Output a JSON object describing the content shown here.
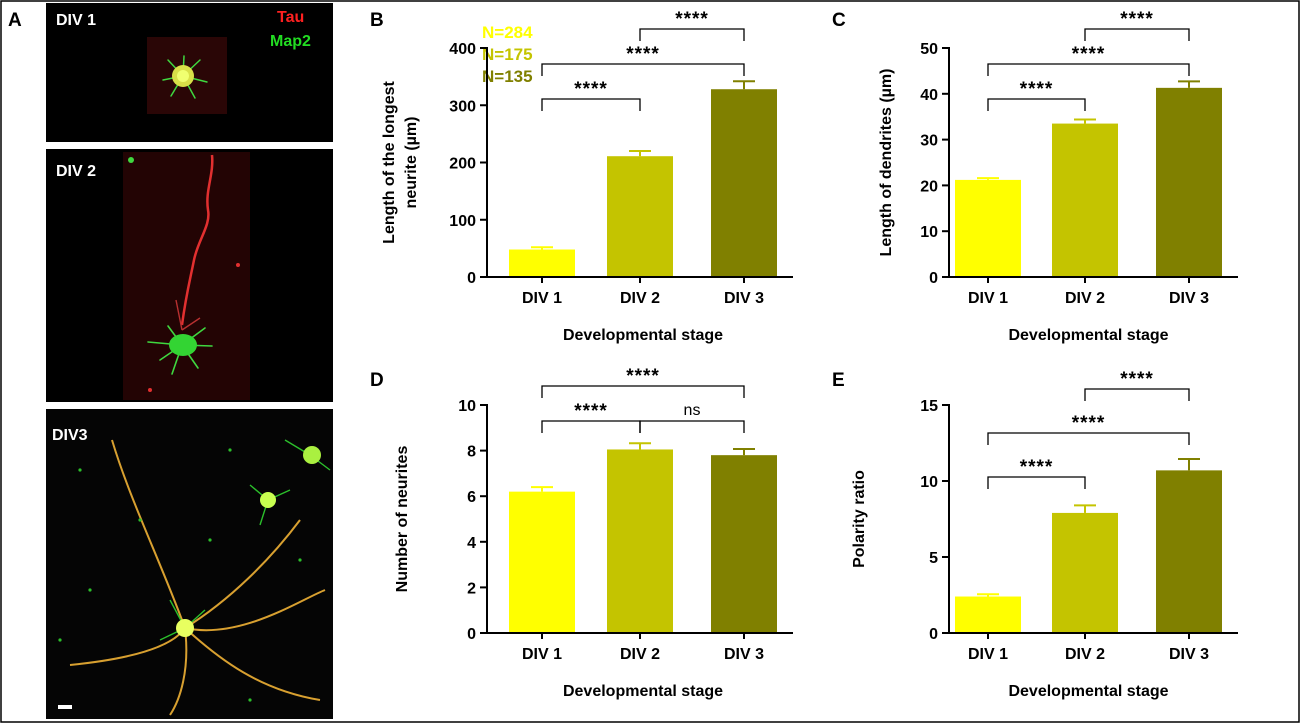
{
  "figure": {
    "panel_letters": [
      "A",
      "B",
      "C",
      "D",
      "E"
    ],
    "micrographs": {
      "labels": [
        "DIV 1",
        "DIV 2",
        "DIV3"
      ],
      "legend": [
        {
          "text": "Tau",
          "color": "#ff2020"
        },
        {
          "text": "Map2",
          "color": "#22dd22"
        }
      ]
    },
    "group_colors": [
      "#ffff00",
      "#c4c400",
      "#808000"
    ],
    "n_labels": [
      {
        "text": "N=284",
        "color": "#ffff00"
      },
      {
        "text": "N=175",
        "color": "#c4c400"
      },
      {
        "text": "N=135",
        "color": "#808000"
      }
    ]
  },
  "chart_data": [
    {
      "panel": "B",
      "type": "bar",
      "categories": [
        "DIV 1",
        "DIV 2",
        "DIV 3"
      ],
      "values": [
        48,
        211,
        328
      ],
      "errors": [
        4,
        9,
        14
      ],
      "ylabel_lines": [
        "Length of the longest",
        "neurite (µm)"
      ],
      "xlabel": "Developmental stage",
      "ylim": [
        0,
        400
      ],
      "yticks": [
        0,
        100,
        200,
        300,
        400
      ],
      "significance": [
        {
          "from": 0,
          "to": 1,
          "label": "****"
        },
        {
          "from": 0,
          "to": 2,
          "label": "****"
        },
        {
          "from": 1,
          "to": 2,
          "label": "****"
        }
      ]
    },
    {
      "panel": "C",
      "type": "bar",
      "categories": [
        "DIV 1",
        "DIV 2",
        "DIV 3"
      ],
      "values": [
        21.2,
        33.5,
        41.3
      ],
      "errors": [
        0.4,
        0.9,
        1.4
      ],
      "ylabel_lines": [
        "Length of dendrites (µm)"
      ],
      "xlabel": "Developmental stage",
      "ylim": [
        0,
        50
      ],
      "yticks": [
        0,
        10,
        20,
        30,
        40,
        50
      ],
      "significance": [
        {
          "from": 0,
          "to": 1,
          "label": "****"
        },
        {
          "from": 0,
          "to": 2,
          "label": "****"
        },
        {
          "from": 1,
          "to": 2,
          "label": "****"
        }
      ]
    },
    {
      "panel": "D",
      "type": "bar",
      "categories": [
        "DIV 1",
        "DIV 2",
        "DIV 3"
      ],
      "values": [
        6.2,
        8.05,
        7.8
      ],
      "errors": [
        0.2,
        0.27,
        0.27
      ],
      "ylabel_lines": [
        "Number of neurites"
      ],
      "xlabel": "Developmental stage",
      "ylim": [
        0,
        10
      ],
      "yticks": [
        0,
        2,
        4,
        6,
        8,
        10
      ],
      "significance": [
        {
          "from": 0,
          "to": 1,
          "label": "****"
        },
        {
          "from": 1,
          "to": 2,
          "label": "ns"
        },
        {
          "from": 0,
          "to": 2,
          "label": "****"
        }
      ]
    },
    {
      "panel": "E",
      "type": "bar",
      "categories": [
        "DIV 1",
        "DIV 2",
        "DIV 3"
      ],
      "values": [
        2.4,
        7.9,
        10.7
      ],
      "errors": [
        0.15,
        0.5,
        0.75
      ],
      "ylabel_lines": [
        "Polarity ratio"
      ],
      "xlabel": "Developmental stage",
      "ylim": [
        0,
        15
      ],
      "yticks": [
        0,
        5,
        10,
        15
      ],
      "significance": [
        {
          "from": 0,
          "to": 1,
          "label": "****"
        },
        {
          "from": 0,
          "to": 2,
          "label": "****"
        },
        {
          "from": 1,
          "to": 2,
          "label": "****"
        }
      ]
    }
  ]
}
